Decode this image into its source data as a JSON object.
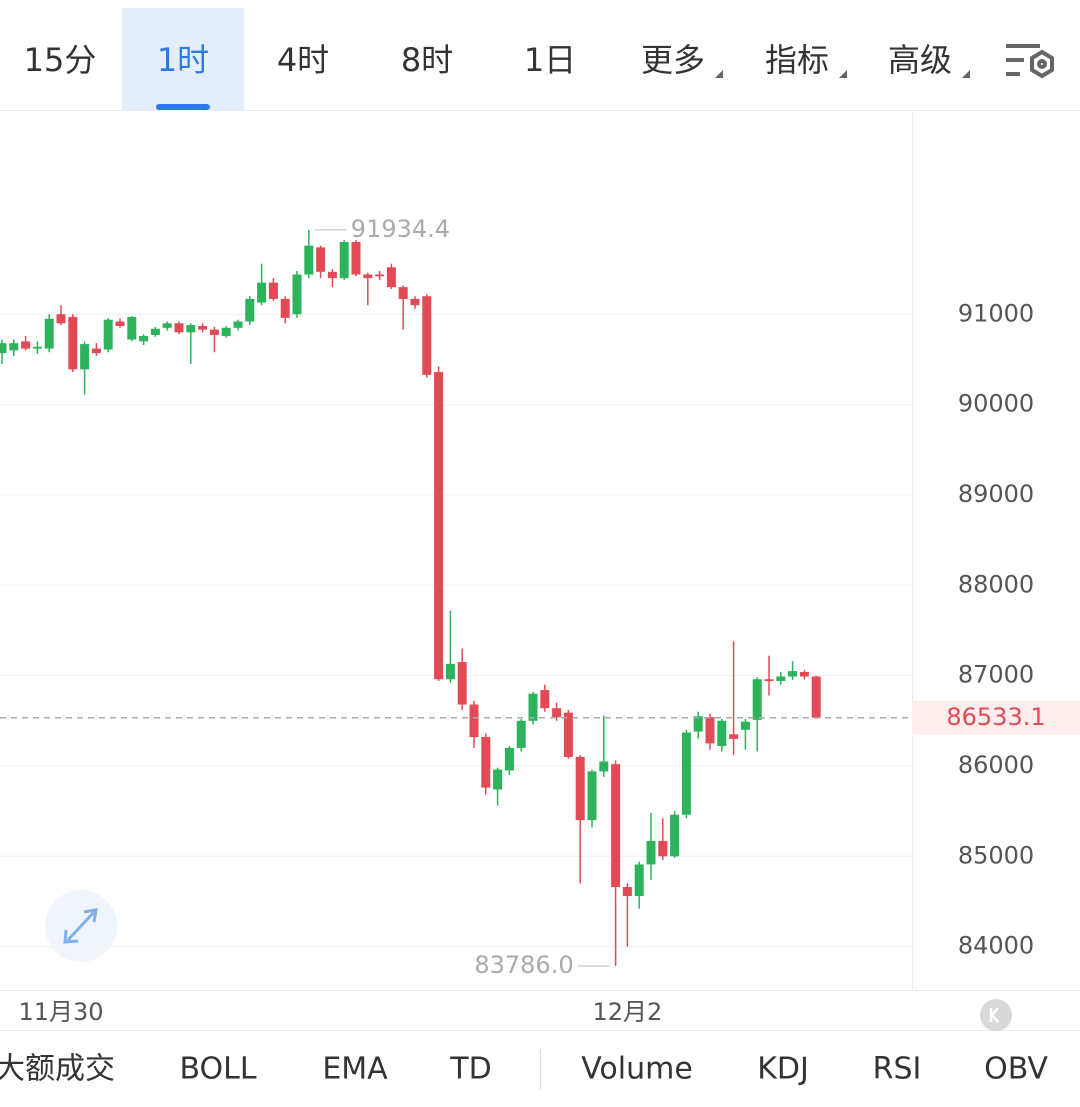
{
  "tabs": {
    "items": [
      "15分",
      "1时",
      "4时",
      "8时",
      "1日",
      "更多",
      "指标",
      "高级"
    ],
    "active": "1时"
  },
  "indicators": [
    "大额成交",
    "BOLL",
    "EMA",
    "TD",
    "Volume",
    "KDJ",
    "RSI",
    "OBV"
  ],
  "chart_data": {
    "type": "candlestick",
    "categories": [
      null,
      null,
      null,
      null,
      null,
      "11月30",
      null,
      null,
      null,
      null,
      null,
      null,
      null,
      null,
      null,
      null,
      null,
      null,
      null,
      null,
      null,
      null,
      null,
      null,
      null,
      null,
      null,
      null,
      null,
      null,
      null,
      null,
      null,
      null,
      null,
      null,
      null,
      null,
      null,
      null,
      null,
      null,
      null,
      null,
      null,
      null,
      null,
      null,
      null,
      null,
      null,
      null,
      null,
      "12月2",
      null,
      null,
      null,
      null,
      null,
      null,
      null,
      null,
      null,
      null,
      null,
      null,
      null,
      null,
      null,
      null
    ],
    "open": [
      90570,
      90600,
      90700,
      90620,
      90620,
      91000,
      90970,
      90390,
      90620,
      90610,
      90920,
      90720,
      90700,
      90770,
      90850,
      90900,
      90800,
      90870,
      90830,
      90760,
      90850,
      90920,
      91130,
      91350,
      91170,
      91000,
      91440,
      91740,
      91470,
      91400,
      91800,
      91440,
      91440,
      91520,
      91300,
      91170,
      91200,
      90360,
      86960,
      87150,
      86680,
      86320,
      85740,
      85950,
      86200,
      86500,
      86840,
      86640,
      86590,
      86100,
      85400,
      85940,
      86020,
      84660,
      84560,
      84910,
      85170,
      85000,
      85460,
      86380,
      86540,
      86220,
      86350,
      86400,
      86510,
      86960,
      86940,
      86990,
      87040,
      86990
    ],
    "high": [
      90720,
      90720,
      90760,
      90700,
      91000,
      91100,
      91000,
      90700,
      90680,
      90960,
      90950,
      90980,
      90780,
      90860,
      90920,
      90920,
      90900,
      90900,
      90860,
      90870,
      90940,
      91200,
      91560,
      91400,
      91200,
      91480,
      91934.4,
      91760,
      91500,
      91820,
      91820,
      91460,
      91480,
      91560,
      91320,
      91200,
      91220,
      90420,
      87720,
      87300,
      86720,
      86360,
      85980,
      86220,
      86520,
      86820,
      86900,
      86700,
      86620,
      86120,
      85960,
      86560,
      86060,
      84700,
      84940,
      85480,
      85420,
      85500,
      86400,
      86600,
      86580,
      86520,
      87380,
      86520,
      86980,
      87220,
      87040,
      87160,
      87060,
      87000
    ],
    "low": [
      90450,
      90540,
      90600,
      90560,
      90580,
      90880,
      90360,
      90110,
      90540,
      90580,
      90850,
      90700,
      90660,
      90750,
      90820,
      90780,
      90450,
      90800,
      90580,
      90740,
      90820,
      90880,
      91100,
      91150,
      90900,
      90960,
      91400,
      91400,
      91300,
      91380,
      91420,
      91100,
      91380,
      91280,
      90830,
      91060,
      90300,
      86940,
      86920,
      86620,
      86200,
      85680,
      85560,
      85900,
      86160,
      86460,
      86600,
      86500,
      86080,
      84700,
      85320,
      85880,
      83786,
      84000,
      84420,
      84740,
      84960,
      84980,
      85420,
      86300,
      86180,
      86160,
      86120,
      86180,
      86160,
      86780,
      86900,
      86950,
      86960,
      86520
    ],
    "close": [
      90680,
      90680,
      90620,
      90640,
      90950,
      90900,
      90390,
      90670,
      90570,
      90940,
      90870,
      90970,
      90760,
      90840,
      90900,
      90800,
      90880,
      90830,
      90770,
      90850,
      90920,
      91170,
      91350,
      91170,
      90960,
      91440,
      91760,
      91470,
      91400,
      91800,
      91440,
      91400,
      91420,
      91300,
      91170,
      91100,
      90330,
      86960,
      87130,
      86680,
      86320,
      85760,
      85960,
      86200,
      86500,
      86800,
      86640,
      86540,
      86100,
      85400,
      85940,
      86050,
      84660,
      84560,
      84910,
      85170,
      85000,
      85460,
      86370,
      86550,
      86250,
      86500,
      86300,
      86490,
      86960,
      86940,
      86990,
      87050,
      86990,
      86533.1
    ],
    "up_color": "#2db35c",
    "down_color": "#e24a55",
    "ylim": [
      83520,
      93250
    ],
    "yticks": [
      84000,
      85000,
      86000,
      87000,
      88000,
      89000,
      90000,
      91000
    ],
    "grid": true,
    "high_marker": 91934.4,
    "low_marker": {
      "value": 83786,
      "label": "83786.0"
    },
    "last_price": 86533.1
  }
}
